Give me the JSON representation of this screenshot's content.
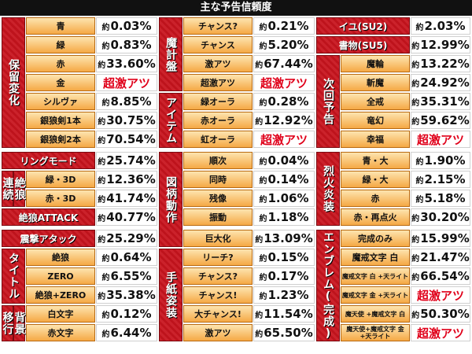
{
  "title": "主な予告信頼度",
  "prefix": "約",
  "hot_text": "超激アツ",
  "colors": {
    "group_red": "#c8141e",
    "label_orange": "#f5a845",
    "hot_red": "#e0001a"
  },
  "groups": {
    "horyu": "保留変化",
    "ring": "リングモード",
    "zetsuro_renzoku_a": "連続",
    "zetsuro_renzoku_b": "絶狼",
    "zetsuro_attack": "絶狼ATTACK",
    "shingeki": "震撃アタック",
    "title": "タイトル",
    "haikei_a": "移行",
    "haikei_b": "背景",
    "makeiban": "魔計盤",
    "item": "アイテム",
    "zugara": "図柄動作",
    "tegami": "手紙姿装",
    "yokoku_top_a": "イユ(SU2)",
    "yokoku_top_b": "書物(SU5)",
    "jikai": "次回予告",
    "rekka": "烈火炎装",
    "emblem": "エンブレム(完成)"
  },
  "col1": [
    {
      "label": "青",
      "value": "0.03%"
    },
    {
      "label": "緑",
      "value": "0.83%"
    },
    {
      "label": "赤",
      "value": "33.60%"
    },
    {
      "label": "金",
      "value": "超激アツ",
      "hot": true
    },
    {
      "label": "シルヴァ",
      "value": "8.85%"
    },
    {
      "label": "銀狼剣1本",
      "value": "30.75%"
    },
    {
      "label": "銀狼剣2本",
      "value": "70.54%"
    },
    {
      "label": "",
      "value": "25.74%"
    },
    {
      "label": "緑・3D",
      "value": "12.36%"
    },
    {
      "label": "赤・3D",
      "value": "41.74%"
    },
    {
      "label": "",
      "value": "40.77%"
    },
    {
      "label": "",
      "value": "25.29%"
    },
    {
      "label": "絶狼",
      "value": "0.64%"
    },
    {
      "label": "ZERO",
      "value": "6.55%"
    },
    {
      "label": "絶狼+ZERO",
      "value": "35.38%"
    },
    {
      "label": "白文字",
      "value": "0.12%"
    },
    {
      "label": "赤文字",
      "value": "6.44%"
    }
  ],
  "col2": [
    {
      "label": "チャンス?",
      "value": "0.21%"
    },
    {
      "label": "チャンス",
      "value": "5.20%"
    },
    {
      "label": "激アツ",
      "value": "67.44%"
    },
    {
      "label": "超激アツ",
      "value": "超激アツ",
      "hot": true
    },
    {
      "label": "緑オーラ",
      "value": "0.28%"
    },
    {
      "label": "赤オーラ",
      "value": "12.92%"
    },
    {
      "label": "虹オーラ",
      "value": "超激アツ",
      "hot": true
    },
    {
      "label": "順次",
      "value": "0.04%"
    },
    {
      "label": "同時",
      "value": "0.14%"
    },
    {
      "label": "残像",
      "value": "1.06%"
    },
    {
      "label": "振動",
      "value": "1.18%"
    },
    {
      "label": "巨大化",
      "value": "13.09%"
    },
    {
      "label": "リーチ?",
      "value": "0.15%"
    },
    {
      "label": "チャンス?",
      "value": "0.17%"
    },
    {
      "label": "チャンス!",
      "value": "1.23%"
    },
    {
      "label": "大チャンス!",
      "value": "11.54%"
    },
    {
      "label": "激アツ",
      "value": "65.50%"
    }
  ],
  "col3": [
    {
      "label": "",
      "value": "2.03%"
    },
    {
      "label": "",
      "value": "12.99%"
    },
    {
      "label": "魔輪",
      "value": "13.22%"
    },
    {
      "label": "斬魔",
      "value": "24.92%"
    },
    {
      "label": "全戒",
      "value": "35.31%"
    },
    {
      "label": "竜幻",
      "value": "59.62%"
    },
    {
      "label": "幸福",
      "value": "超激アツ",
      "hot": true
    },
    {
      "label": "青・大",
      "value": "1.90%"
    },
    {
      "label": "緑・大",
      "value": "2.15%"
    },
    {
      "label": "赤",
      "value": "5.18%"
    },
    {
      "label": "赤・再点火",
      "value": "30.20%"
    },
    {
      "label": "完成のみ",
      "value": "15.99%"
    },
    {
      "label": "魔戒文字 白",
      "value": "21.47%"
    },
    {
      "label": "魔戒文字 白 +天ライト",
      "value": "66.54%"
    },
    {
      "label": "魔戒文字 金 +天ライト",
      "value": "超激アツ",
      "hot": true
    },
    {
      "label": "魔天使 +魔戒文字 白",
      "value": "50.30%"
    },
    {
      "label": "魔天使+魔戒文字 金+天ライト",
      "value": "超激アツ",
      "hot": true
    }
  ]
}
